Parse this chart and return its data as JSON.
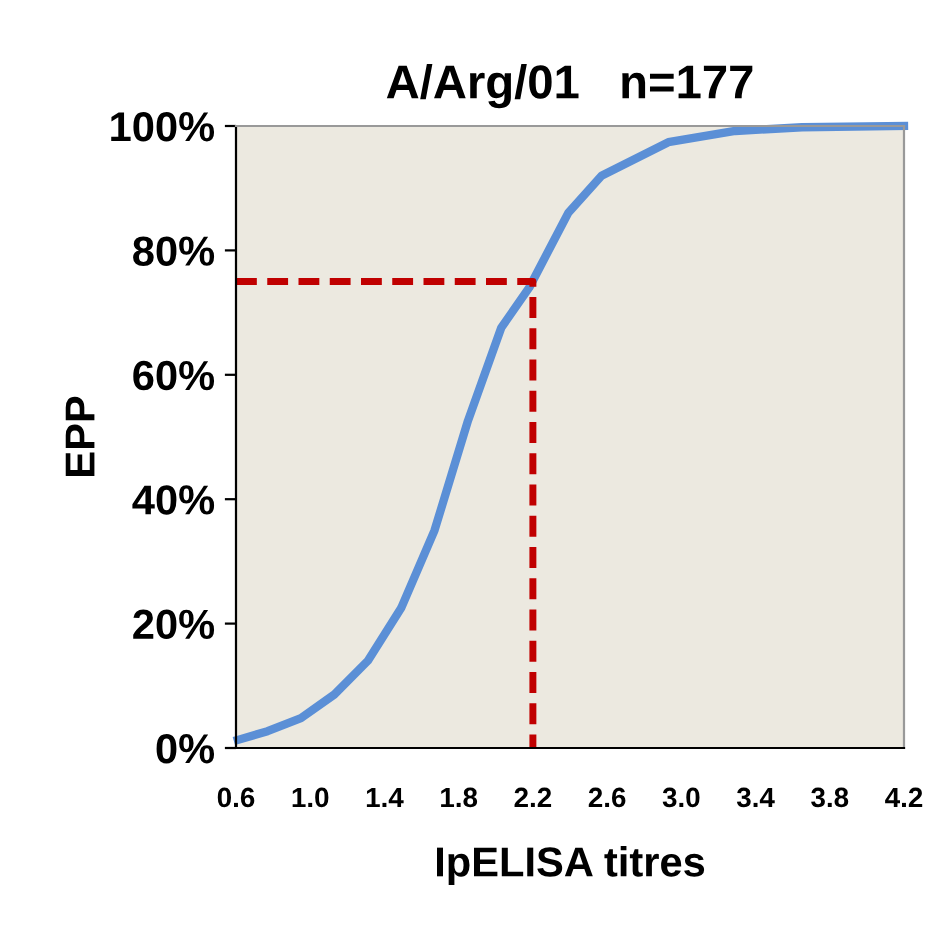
{
  "chart_data": {
    "type": "line",
    "title": "A/Arg/01   n=177",
    "xlabel": "IpELISA titres",
    "ylabel": "EPP",
    "xlim": [
      0.6,
      4.2
    ],
    "xticks": [
      {
        "value": 0.6,
        "label": "0.6"
      },
      {
        "value": 1.0,
        "label": "1.0"
      },
      {
        "value": 1.4,
        "label": "1.4"
      },
      {
        "value": 1.8,
        "label": "1.8"
      },
      {
        "value": 2.2,
        "label": "2.2"
      },
      {
        "value": 2.6,
        "label": "2.6"
      },
      {
        "value": 3.0,
        "label": "3.0"
      },
      {
        "value": 3.4,
        "label": "3.4"
      },
      {
        "value": 3.8,
        "label": "3.8"
      },
      {
        "value": 4.2,
        "label": "4.2"
      }
    ],
    "ylim": [
      0,
      100
    ],
    "yticks": [
      {
        "value": 0,
        "label": "0%"
      },
      {
        "value": 20,
        "label": "20%"
      },
      {
        "value": 40,
        "label": "40%"
      },
      {
        "value": 60,
        "label": "60%"
      },
      {
        "value": 80,
        "label": "80%"
      },
      {
        "value": 100,
        "label": "100%"
      }
    ],
    "grid": false,
    "marker": "none",
    "series": [
      {
        "color": "#5b8fd6",
        "line_style": "solid",
        "x": [
          0.61,
          0.77,
          0.95,
          1.13,
          1.31,
          1.49,
          1.67,
          1.85,
          2.03,
          2.18,
          2.39,
          2.57,
          2.93,
          3.29,
          3.65,
          4.2
        ],
        "values": [
          1.3,
          2.7,
          4.8,
          8.6,
          14,
          22.5,
          35,
          52.6,
          67.6,
          74,
          86,
          92,
          97.4,
          99.2,
          99.8,
          100
        ]
      },
      {
        "color": "#c00000",
        "line_style": "dashed",
        "x": [
          0.6,
          2.2,
          2.2
        ],
        "values": [
          75,
          75,
          0
        ]
      }
    ]
  }
}
